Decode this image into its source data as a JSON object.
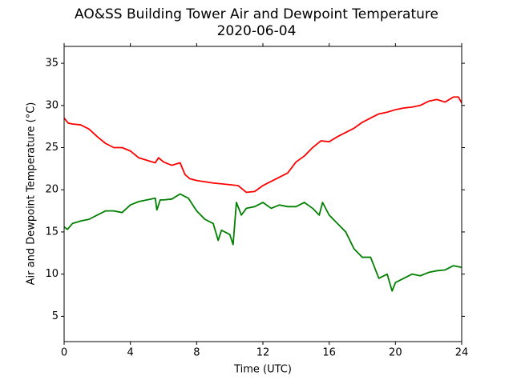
{
  "chart_data": {
    "type": "line",
    "title": "AO&SS Building Tower Air and Dewpoint Temperature",
    "subtitle": "2020-06-04",
    "x_label": "Time (UTC)",
    "y_label": "Air and Dewpoint Temperature (°C)",
    "xlim": [
      0,
      24
    ],
    "xticks": [
      0,
      4,
      8,
      12,
      16,
      20,
      24
    ],
    "ylim": [
      2,
      37
    ],
    "yticks": [
      5,
      10,
      15,
      20,
      25,
      30,
      35
    ],
    "grid": false,
    "series": [
      {
        "color": "#ff0000",
        "x": [
          0,
          0.25,
          0.5,
          1,
          1.5,
          2,
          2.5,
          3,
          3.5,
          4,
          4.5,
          5,
          5.5,
          5.7,
          6,
          6.5,
          7,
          7.3,
          7.6,
          8,
          9,
          10,
          10.5,
          11,
          11.5,
          12,
          12.5,
          13,
          13.5,
          14,
          14.5,
          15,
          15.5,
          16,
          16.5,
          17,
          17.5,
          18,
          18.5,
          19,
          19.5,
          20,
          20.5,
          21,
          21.5,
          22,
          22.5,
          23,
          23.5,
          23.8,
          24
        ],
        "values": [
          28.5,
          27.9,
          27.8,
          27.7,
          27.2,
          26.3,
          25.5,
          25.0,
          25.0,
          24.6,
          23.8,
          23.5,
          23.2,
          23.8,
          23.3,
          22.9,
          23.2,
          21.8,
          21.3,
          21.1,
          20.8,
          20.6,
          20.5,
          19.7,
          19.8,
          20.5,
          21.0,
          21.5,
          22.0,
          23.3,
          24.0,
          25.0,
          25.8,
          25.7,
          26.3,
          26.8,
          27.3,
          28.0,
          28.5,
          29.0,
          29.2,
          29.5,
          29.7,
          29.8,
          30.0,
          30.5,
          30.7,
          30.4,
          31.0,
          31.0,
          30.3
        ]
      },
      {
        "color": "#008000",
        "x": [
          0,
          0.2,
          0.5,
          1,
          1.5,
          2,
          2.5,
          3,
          3.5,
          4,
          4.5,
          5,
          5.5,
          5.6,
          5.8,
          6,
          6.5,
          7,
          7.5,
          8,
          8.5,
          9,
          9.3,
          9.5,
          10,
          10.2,
          10.4,
          10.7,
          11,
          11.5,
          12,
          12.5,
          13,
          13.5,
          14,
          14.5,
          15,
          15.4,
          15.6,
          16,
          16.5,
          17,
          17.5,
          18,
          18.5,
          19,
          19.5,
          19.8,
          20,
          20.5,
          21,
          21.5,
          22,
          22.5,
          23,
          23.5,
          24
        ],
        "values": [
          15.6,
          15.3,
          16.0,
          16.3,
          16.5,
          17.0,
          17.5,
          17.5,
          17.3,
          18.2,
          18.6,
          18.8,
          19.0,
          17.6,
          18.8,
          18.8,
          18.9,
          19.5,
          19.0,
          17.5,
          16.5,
          16.0,
          14.0,
          15.2,
          14.7,
          13.5,
          18.5,
          17.0,
          17.8,
          18.0,
          18.5,
          17.8,
          18.2,
          18.0,
          18.0,
          18.5,
          17.8,
          17.0,
          18.5,
          17.0,
          16.0,
          15.0,
          13.0,
          12.0,
          12.0,
          9.5,
          10.0,
          8.0,
          9.0,
          9.5,
          10.0,
          9.8,
          10.2,
          10.4,
          10.5,
          11.0,
          10.8
        ]
      }
    ]
  }
}
